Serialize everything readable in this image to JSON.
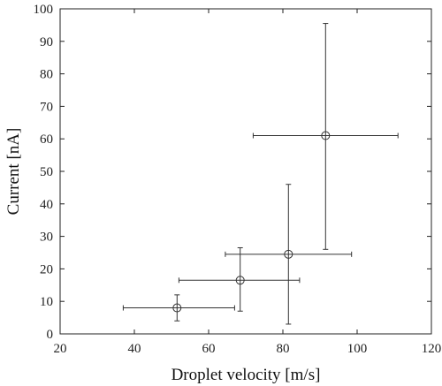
{
  "chart_data": {
    "type": "scatter",
    "title": "",
    "xlabel": "Droplet velocity [m/s]",
    "ylabel": "Current [nA]",
    "xlim": [
      20,
      120
    ],
    "ylim": [
      0,
      100
    ],
    "xticks": [
      20,
      40,
      60,
      80,
      100,
      120
    ],
    "yticks": [
      0,
      10,
      20,
      30,
      40,
      50,
      60,
      70,
      80,
      90,
      100
    ],
    "grid": false,
    "marker": "open-circle",
    "color": "#333333",
    "points": [
      {
        "x": 51.5,
        "y": 8.0,
        "x_err": [
          37,
          67
        ],
        "y_err": [
          4,
          12
        ]
      },
      {
        "x": 68.5,
        "y": 16.5,
        "x_err": [
          52,
          84.5
        ],
        "y_err": [
          7,
          26.5
        ]
      },
      {
        "x": 81.5,
        "y": 24.5,
        "x_err": [
          64.5,
          98.5
        ],
        "y_err": [
          3,
          46
        ]
      },
      {
        "x": 91.5,
        "y": 61.0,
        "x_err": [
          72,
          111
        ],
        "y_err": [
          26,
          95.5
        ]
      }
    ]
  }
}
